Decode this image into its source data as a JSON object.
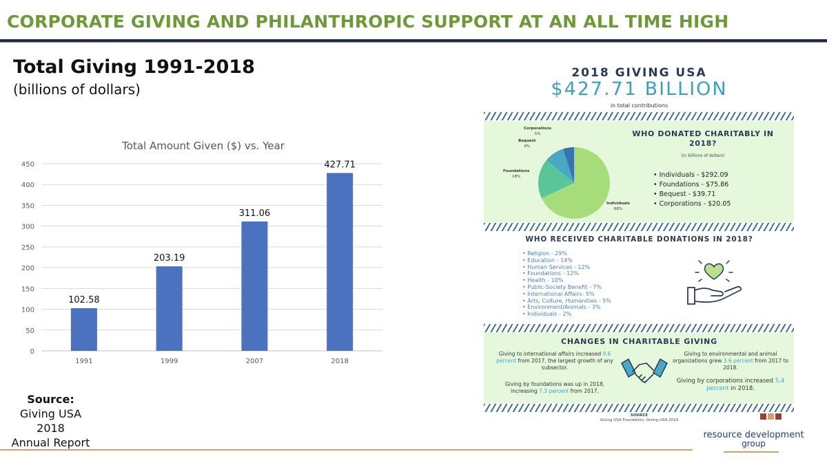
{
  "header": {
    "title": "CORPORATE GIVING AND PHILANTHROPIC SUPPORT AT AN ALL TIME HIGH"
  },
  "left": {
    "title": "Total Giving 1991-2018",
    "subtitle": "(billions of dollars)",
    "source": {
      "heading": "Source:",
      "line1": "Giving USA 2018",
      "line2": "Annual Report"
    }
  },
  "chart_data": {
    "type": "bar",
    "title": "Total Amount Given ($) vs. Year",
    "categories": [
      "1991",
      "1999",
      "2007",
      "2018"
    ],
    "values": [
      102.58,
      203.19,
      311.06,
      427.71
    ],
    "data_labels": [
      "102.58",
      "203.19",
      "311.06",
      "427.71"
    ],
    "ylim": [
      0,
      450
    ],
    "yticks": [
      0,
      50,
      100,
      150,
      200,
      250,
      300,
      350,
      400,
      450
    ],
    "grid": true,
    "bar_color": "#4a72bf"
  },
  "infographic": {
    "title": "2018 GIVING USA",
    "amount": "$427.71 BILLION",
    "amount_sub": "in total contributions",
    "donors": {
      "heading": "WHO DONATED CHARITABLY IN 2018?",
      "note": "(in billions of dollars)",
      "items": [
        "Individuals - $292.09",
        "Foundations - $75.86",
        "Bequest - $39.71",
        "Corporations - $20.05"
      ],
      "pie": [
        {
          "label": "Individuals",
          "pct": "68%",
          "value": 68,
          "color": "#a6dc7a"
        },
        {
          "label": "Foundations",
          "pct": "18%",
          "value": 18,
          "color": "#59c69a"
        },
        {
          "label": "Bequest",
          "pct": "9%",
          "value": 9,
          "color": "#4aa8c4"
        },
        {
          "label": "Corporations",
          "pct": "5%",
          "value": 5,
          "color": "#3a72b0"
        }
      ]
    },
    "recipients": {
      "heading": "WHO RECEIVED CHARITABLE DONATIONS IN 2018?",
      "items": [
        "Religion - 29%",
        "Education - 14%",
        "Human Services - 12%",
        "Foundations - 12%",
        "Health - 10%",
        "Public-Society Benefit - 7%",
        "International Affairs- 5%",
        "Arts, Culture, Humanities - 5%",
        "Environment/Animals - 3%",
        "Individuals - 2%"
      ]
    },
    "changes": {
      "heading": "CHANGES IN CHARITABLE GIVING",
      "f1_a": "Giving to international affairs increased",
      "f1_hl": "9.6 percent",
      "f1_b": "from 2017, the largest growth of any subsector.",
      "f2_a": "Giving by foundations was up in 2018, increasing",
      "f2_hl": "7.3 percent",
      "f2_b": "from 2017.",
      "f3_a": "Giving to environmental and animal organizations grew",
      "f3_hl": "3.6 percent",
      "f3_b": "from 2017 to 2018.",
      "f4_a": "Giving by corporations increased",
      "f4_hl": "5.4 percent",
      "f4_b": "in 2018."
    },
    "source": {
      "heading": "SOURCE",
      "text": "Giving USA Foundation, Giving USA 2019"
    }
  },
  "logo": {
    "line1": "resource development",
    "line2": "group"
  },
  "colors": {
    "title_green": "#6b9a36",
    "navy": "#1f2a4a",
    "accent_gold": "#c9a36a"
  }
}
